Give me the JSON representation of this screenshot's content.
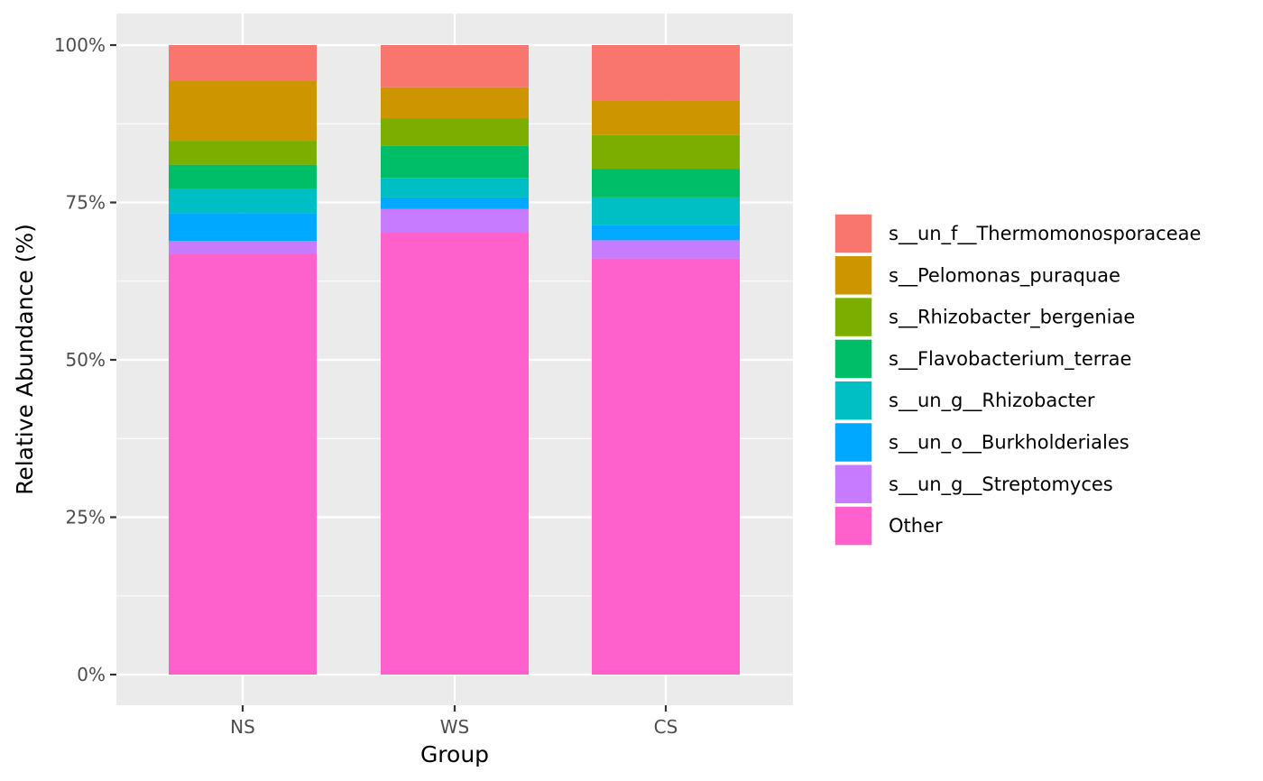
{
  "chart_data": {
    "type": "bar",
    "stacked": true,
    "orientation": "vertical",
    "xlabel": "Group",
    "ylabel": "Relative Abundance (%)",
    "categories": [
      "NS",
      "WS",
      "CS"
    ],
    "ylim": [
      0,
      100
    ],
    "yticks": [
      0,
      25,
      50,
      75,
      100
    ],
    "ytick_labels": [
      "0%",
      "25%",
      "50%",
      "75%",
      "100%"
    ],
    "grid": true,
    "legend_position": "right",
    "series": [
      {
        "name": "Other",
        "color": "#FF61CC",
        "values": [
          66.9,
          70.2,
          66.1
        ]
      },
      {
        "name": "s__un_g__Streptomyces",
        "color": "#C77CFF",
        "values": [
          2.0,
          3.8,
          2.9
        ]
      },
      {
        "name": "s__un_o__Burkholderiales",
        "color": "#00A9FF",
        "values": [
          4.4,
          1.8,
          2.4
        ]
      },
      {
        "name": "s__un_g__Rhizobacter",
        "color": "#00BFC4",
        "values": [
          3.8,
          3.1,
          4.4
        ]
      },
      {
        "name": "s__Flavobacterium_terrae",
        "color": "#00BE67",
        "values": [
          3.9,
          5.1,
          4.5
        ]
      },
      {
        "name": "s__Rhizobacter_bergeniae",
        "color": "#7CAE00",
        "values": [
          3.8,
          4.4,
          5.4
        ]
      },
      {
        "name": "s__Pelomonas_puraquae",
        "color": "#CD9600",
        "values": [
          9.6,
          4.9,
          5.5
        ]
      },
      {
        "name": "s__un_f__Thermomonosporaceae",
        "color": "#F8766D",
        "values": [
          5.6,
          6.7,
          8.8
        ]
      }
    ],
    "legend_order": [
      "s__un_f__Thermomonosporaceae",
      "s__Pelomonas_puraquae",
      "s__Rhizobacter_bergeniae",
      "s__Flavobacterium_terrae",
      "s__un_g__Rhizobacter",
      "s__un_o__Burkholderiales",
      "s__un_g__Streptomyces",
      "Other"
    ],
    "colors": {
      "panel_background": "#EBEBEB",
      "grid_major": "#FFFFFF",
      "tick_text": "#4D4D4D"
    }
  }
}
